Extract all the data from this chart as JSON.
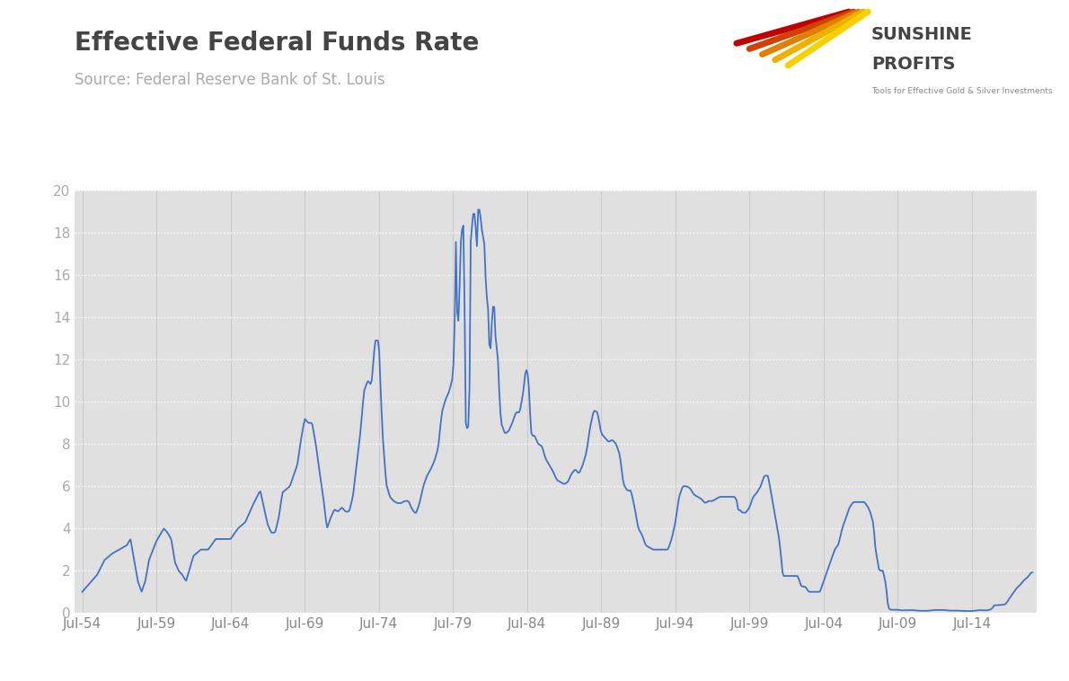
{
  "title": "Effective Federal Funds Rate",
  "subtitle": "Source: Federal Reserve Bank of St. Louis",
  "title_color": "#444444",
  "subtitle_color": "#aaaaaa",
  "line_color": "#4472c4",
  "background_color": "#ffffff",
  "plot_background_color": "#e0e0e0",
  "grid_color_h": "#ffffff",
  "grid_color_v": "#cccccc",
  "yticks": [
    0,
    2,
    4,
    6,
    8,
    10,
    12,
    14,
    16,
    18,
    20
  ],
  "ylim": [
    0,
    20
  ],
  "xtick_labels": [
    "Jul-54",
    "Jul-59",
    "Jul-64",
    "Jul-69",
    "Jul-74",
    "Jul-79",
    "Jul-84",
    "Jul-89",
    "Jul-94",
    "Jul-99",
    "Jul-04",
    "Jul-09",
    "Jul-14"
  ],
  "xtick_years": [
    1954,
    1959,
    1964,
    1969,
    1974,
    1979,
    1984,
    1989,
    1994,
    1999,
    2004,
    2009,
    2014
  ],
  "from_year": 1954.5,
  "to_year": 2018.583,
  "key_points": [
    [
      1954.5,
      1.0
    ],
    [
      1955.0,
      1.4
    ],
    [
      1955.5,
      1.8
    ],
    [
      1956.0,
      2.5
    ],
    [
      1956.5,
      2.8
    ],
    [
      1957.0,
      3.0
    ],
    [
      1957.5,
      3.2
    ],
    [
      1957.75,
      3.5
    ],
    [
      1958.0,
      2.5
    ],
    [
      1958.25,
      1.5
    ],
    [
      1958.5,
      1.0
    ],
    [
      1958.75,
      1.5
    ],
    [
      1959.0,
      2.5
    ],
    [
      1959.5,
      3.4
    ],
    [
      1960.0,
      4.0
    ],
    [
      1960.25,
      3.8
    ],
    [
      1960.5,
      3.5
    ],
    [
      1960.75,
      2.4
    ],
    [
      1961.0,
      2.0
    ],
    [
      1961.25,
      1.8
    ],
    [
      1961.5,
      1.5
    ],
    [
      1962.0,
      2.7
    ],
    [
      1962.5,
      3.0
    ],
    [
      1963.0,
      3.0
    ],
    [
      1963.5,
      3.5
    ],
    [
      1964.0,
      3.5
    ],
    [
      1964.5,
      3.5
    ],
    [
      1965.0,
      4.0
    ],
    [
      1965.5,
      4.3
    ],
    [
      1966.0,
      5.1
    ],
    [
      1966.5,
      5.8
    ],
    [
      1967.0,
      4.2
    ],
    [
      1967.25,
      3.8
    ],
    [
      1967.5,
      3.8
    ],
    [
      1967.75,
      4.5
    ],
    [
      1968.0,
      5.7
    ],
    [
      1968.5,
      6.0
    ],
    [
      1969.0,
      7.0
    ],
    [
      1969.25,
      8.2
    ],
    [
      1969.5,
      9.2
    ],
    [
      1969.75,
      9.0
    ],
    [
      1970.0,
      9.0
    ],
    [
      1970.25,
      8.0
    ],
    [
      1970.5,
      6.7
    ],
    [
      1970.75,
      5.5
    ],
    [
      1971.0,
      4.0
    ],
    [
      1971.25,
      4.5
    ],
    [
      1971.5,
      4.9
    ],
    [
      1971.75,
      4.8
    ],
    [
      1972.0,
      5.0
    ],
    [
      1972.25,
      4.8
    ],
    [
      1972.5,
      4.8
    ],
    [
      1972.75,
      5.5
    ],
    [
      1973.0,
      7.0
    ],
    [
      1973.25,
      8.5
    ],
    [
      1973.5,
      10.5
    ],
    [
      1973.75,
      11.0
    ],
    [
      1974.0,
      10.8
    ],
    [
      1974.25,
      12.9
    ],
    [
      1974.5,
      12.9
    ],
    [
      1974.6,
      11.0
    ],
    [
      1974.75,
      8.5
    ],
    [
      1975.0,
      6.1
    ],
    [
      1975.25,
      5.5
    ],
    [
      1975.5,
      5.3
    ],
    [
      1975.75,
      5.2
    ],
    [
      1976.0,
      5.2
    ],
    [
      1976.25,
      5.3
    ],
    [
      1976.5,
      5.3
    ],
    [
      1976.75,
      4.9
    ],
    [
      1977.0,
      4.7
    ],
    [
      1977.25,
      5.2
    ],
    [
      1977.5,
      6.0
    ],
    [
      1977.75,
      6.5
    ],
    [
      1978.0,
      6.8
    ],
    [
      1978.25,
      7.2
    ],
    [
      1978.5,
      7.8
    ],
    [
      1978.75,
      9.5
    ],
    [
      1979.0,
      10.1
    ],
    [
      1979.25,
      10.5
    ],
    [
      1979.5,
      11.2
    ],
    [
      1979.6,
      13.0
    ],
    [
      1979.7,
      17.6
    ],
    [
      1979.75,
      13.8
    ],
    [
      1979.8,
      14.5
    ],
    [
      1979.9,
      13.5
    ],
    [
      1980.0,
      17.5
    ],
    [
      1980.1,
      17.7
    ],
    [
      1980.15,
      19.1
    ],
    [
      1980.25,
      17.6
    ],
    [
      1980.3,
      13.0
    ],
    [
      1980.35,
      9.0
    ],
    [
      1980.4,
      9.0
    ],
    [
      1980.5,
      8.5
    ],
    [
      1980.6,
      9.5
    ],
    [
      1980.65,
      13.0
    ],
    [
      1980.7,
      17.6
    ],
    [
      1980.75,
      18.0
    ],
    [
      1980.85,
      18.9
    ],
    [
      1981.0,
      18.9
    ],
    [
      1981.1,
      17.0
    ],
    [
      1981.2,
      19.1
    ],
    [
      1981.3,
      19.1
    ],
    [
      1981.4,
      18.5
    ],
    [
      1981.5,
      17.8
    ],
    [
      1981.6,
      17.8
    ],
    [
      1981.75,
      15.0
    ],
    [
      1981.85,
      14.9
    ],
    [
      1981.9,
      13.5
    ],
    [
      1982.0,
      12.0
    ],
    [
      1982.1,
      13.5
    ],
    [
      1982.2,
      14.5
    ],
    [
      1982.3,
      14.5
    ],
    [
      1982.4,
      12.5
    ],
    [
      1982.5,
      12.6
    ],
    [
      1982.65,
      10.0
    ],
    [
      1982.75,
      9.0
    ],
    [
      1982.85,
      8.8
    ],
    [
      1983.0,
      8.5
    ],
    [
      1983.25,
      8.6
    ],
    [
      1983.5,
      9.0
    ],
    [
      1983.75,
      9.5
    ],
    [
      1984.0,
      9.5
    ],
    [
      1984.25,
      10.5
    ],
    [
      1984.4,
      11.5
    ],
    [
      1984.5,
      11.5
    ],
    [
      1984.6,
      11.0
    ],
    [
      1984.7,
      9.5
    ],
    [
      1984.8,
      8.4
    ],
    [
      1985.0,
      8.4
    ],
    [
      1985.25,
      8.0
    ],
    [
      1985.5,
      7.9
    ],
    [
      1985.75,
      7.3
    ],
    [
      1986.0,
      7.0
    ],
    [
      1986.25,
      6.7
    ],
    [
      1986.5,
      6.3
    ],
    [
      1986.75,
      6.2
    ],
    [
      1987.0,
      6.1
    ],
    [
      1987.25,
      6.2
    ],
    [
      1987.5,
      6.6
    ],
    [
      1987.75,
      6.8
    ],
    [
      1988.0,
      6.6
    ],
    [
      1988.25,
      7.0
    ],
    [
      1988.5,
      7.6
    ],
    [
      1988.75,
      8.8
    ],
    [
      1989.0,
      9.6
    ],
    [
      1989.25,
      9.5
    ],
    [
      1989.5,
      8.5
    ],
    [
      1989.75,
      8.3
    ],
    [
      1990.0,
      8.1
    ],
    [
      1990.25,
      8.2
    ],
    [
      1990.5,
      8.0
    ],
    [
      1990.75,
      7.5
    ],
    [
      1991.0,
      6.1
    ],
    [
      1991.25,
      5.8
    ],
    [
      1991.5,
      5.8
    ],
    [
      1991.75,
      5.0
    ],
    [
      1992.0,
      4.0
    ],
    [
      1992.25,
      3.7
    ],
    [
      1992.5,
      3.2
    ],
    [
      1992.75,
      3.1
    ],
    [
      1993.0,
      3.0
    ],
    [
      1993.25,
      3.0
    ],
    [
      1993.5,
      3.0
    ],
    [
      1993.75,
      3.0
    ],
    [
      1994.0,
      3.0
    ],
    [
      1994.25,
      3.5
    ],
    [
      1994.5,
      4.3
    ],
    [
      1994.75,
      5.5
    ],
    [
      1995.0,
      6.0
    ],
    [
      1995.25,
      6.0
    ],
    [
      1995.5,
      5.9
    ],
    [
      1995.75,
      5.6
    ],
    [
      1996.0,
      5.5
    ],
    [
      1996.25,
      5.4
    ],
    [
      1996.5,
      5.2
    ],
    [
      1996.75,
      5.3
    ],
    [
      1997.0,
      5.3
    ],
    [
      1997.25,
      5.4
    ],
    [
      1997.5,
      5.5
    ],
    [
      1997.75,
      5.5
    ],
    [
      1998.0,
      5.5
    ],
    [
      1998.25,
      5.5
    ],
    [
      1998.5,
      5.5
    ],
    [
      1998.65,
      5.3
    ],
    [
      1998.75,
      4.8
    ],
    [
      1998.85,
      4.9
    ],
    [
      1999.0,
      4.75
    ],
    [
      1999.25,
      4.75
    ],
    [
      1999.5,
      5.0
    ],
    [
      1999.75,
      5.5
    ],
    [
      2000.0,
      5.7
    ],
    [
      2000.25,
      6.0
    ],
    [
      2000.5,
      6.5
    ],
    [
      2000.75,
      6.5
    ],
    [
      2001.0,
      5.5
    ],
    [
      2001.25,
      4.5
    ],
    [
      2001.5,
      3.5
    ],
    [
      2001.65,
      2.5
    ],
    [
      2001.75,
      1.75
    ],
    [
      2002.0,
      1.75
    ],
    [
      2002.25,
      1.75
    ],
    [
      2002.5,
      1.75
    ],
    [
      2002.75,
      1.75
    ],
    [
      2003.0,
      1.25
    ],
    [
      2003.25,
      1.25
    ],
    [
      2003.5,
      1.0
    ],
    [
      2003.75,
      1.0
    ],
    [
      2004.0,
      1.0
    ],
    [
      2004.25,
      1.0
    ],
    [
      2004.5,
      1.5
    ],
    [
      2004.75,
      2.0
    ],
    [
      2005.0,
      2.5
    ],
    [
      2005.25,
      3.0
    ],
    [
      2005.5,
      3.25
    ],
    [
      2005.75,
      4.0
    ],
    [
      2006.0,
      4.5
    ],
    [
      2006.25,
      5.0
    ],
    [
      2006.5,
      5.25
    ],
    [
      2006.75,
      5.25
    ],
    [
      2007.0,
      5.25
    ],
    [
      2007.25,
      5.25
    ],
    [
      2007.5,
      5.0
    ],
    [
      2007.65,
      4.75
    ],
    [
      2007.75,
      4.5
    ],
    [
      2007.85,
      4.25
    ],
    [
      2008.0,
      3.0
    ],
    [
      2008.25,
      2.0
    ],
    [
      2008.5,
      2.0
    ],
    [
      2008.65,
      1.5
    ],
    [
      2008.75,
      1.0
    ],
    [
      2008.85,
      0.25
    ],
    [
      2009.0,
      0.15
    ],
    [
      2009.25,
      0.15
    ],
    [
      2009.5,
      0.15
    ],
    [
      2009.75,
      0.12
    ],
    [
      2010.0,
      0.13
    ],
    [
      2010.5,
      0.13
    ],
    [
      2011.0,
      0.1
    ],
    [
      2011.5,
      0.1
    ],
    [
      2012.0,
      0.14
    ],
    [
      2012.5,
      0.14
    ],
    [
      2013.0,
      0.11
    ],
    [
      2013.5,
      0.11
    ],
    [
      2014.0,
      0.09
    ],
    [
      2014.5,
      0.09
    ],
    [
      2015.0,
      0.13
    ],
    [
      2015.4,
      0.12
    ],
    [
      2015.5,
      0.12
    ],
    [
      2015.75,
      0.16
    ],
    [
      2015.9,
      0.24
    ],
    [
      2016.0,
      0.36
    ],
    [
      2016.25,
      0.37
    ],
    [
      2016.5,
      0.38
    ],
    [
      2016.75,
      0.41
    ],
    [
      2016.9,
      0.54
    ],
    [
      2017.0,
      0.66
    ],
    [
      2017.25,
      0.91
    ],
    [
      2017.5,
      1.16
    ],
    [
      2017.75,
      1.33
    ],
    [
      2018.0,
      1.54
    ],
    [
      2018.25,
      1.69
    ],
    [
      2018.5,
      1.91
    ]
  ]
}
